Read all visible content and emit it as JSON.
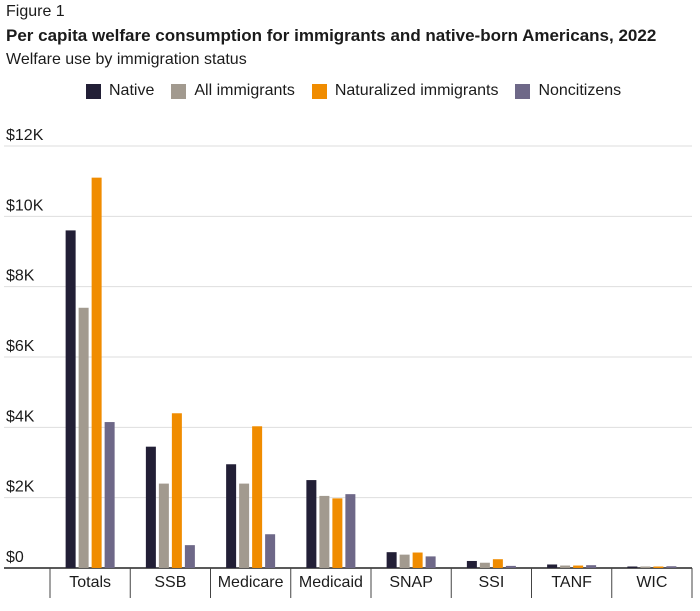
{
  "figure_label": "Figure 1",
  "colors": {
    "Native": "#221f36",
    "All immigrants": "#a29a8f",
    "Naturalized immigrants": "#f08c00",
    "Noncitizens": "#6e6888"
  },
  "chart_data": {
    "type": "bar",
    "title": "Per capita welfare consumption for immigrants and native-born Americans, 2022",
    "subtitle": "Welfare use by immigration status",
    "xlabel": "",
    "ylabel": "",
    "categories": [
      "Totals",
      "SSB",
      "Medicare",
      "Medicaid",
      "SNAP",
      "SSI",
      "TANF",
      "WIC"
    ],
    "series": [
      {
        "name": "Native",
        "values": [
          9600,
          3450,
          2950,
          2500,
          450,
          200,
          100,
          30
        ]
      },
      {
        "name": "All immigrants",
        "values": [
          7400,
          2400,
          2400,
          2050,
          380,
          150,
          70,
          40
        ]
      },
      {
        "name": "Naturalized immigrants",
        "values": [
          11100,
          4400,
          4030,
          1980,
          440,
          250,
          70,
          30
        ]
      },
      {
        "name": "Noncitizens",
        "values": [
          4150,
          650,
          960,
          2100,
          330,
          60,
          80,
          50
        ]
      }
    ],
    "ylim": [
      0,
      12000
    ],
    "yticks": [
      0,
      2000,
      4000,
      6000,
      8000,
      10000,
      12000
    ],
    "ytick_labels": [
      "$0",
      "$2K",
      "$4K",
      "$6K",
      "$8K",
      "$10K",
      "$12K"
    ],
    "grid": true,
    "legend_position": "top"
  }
}
